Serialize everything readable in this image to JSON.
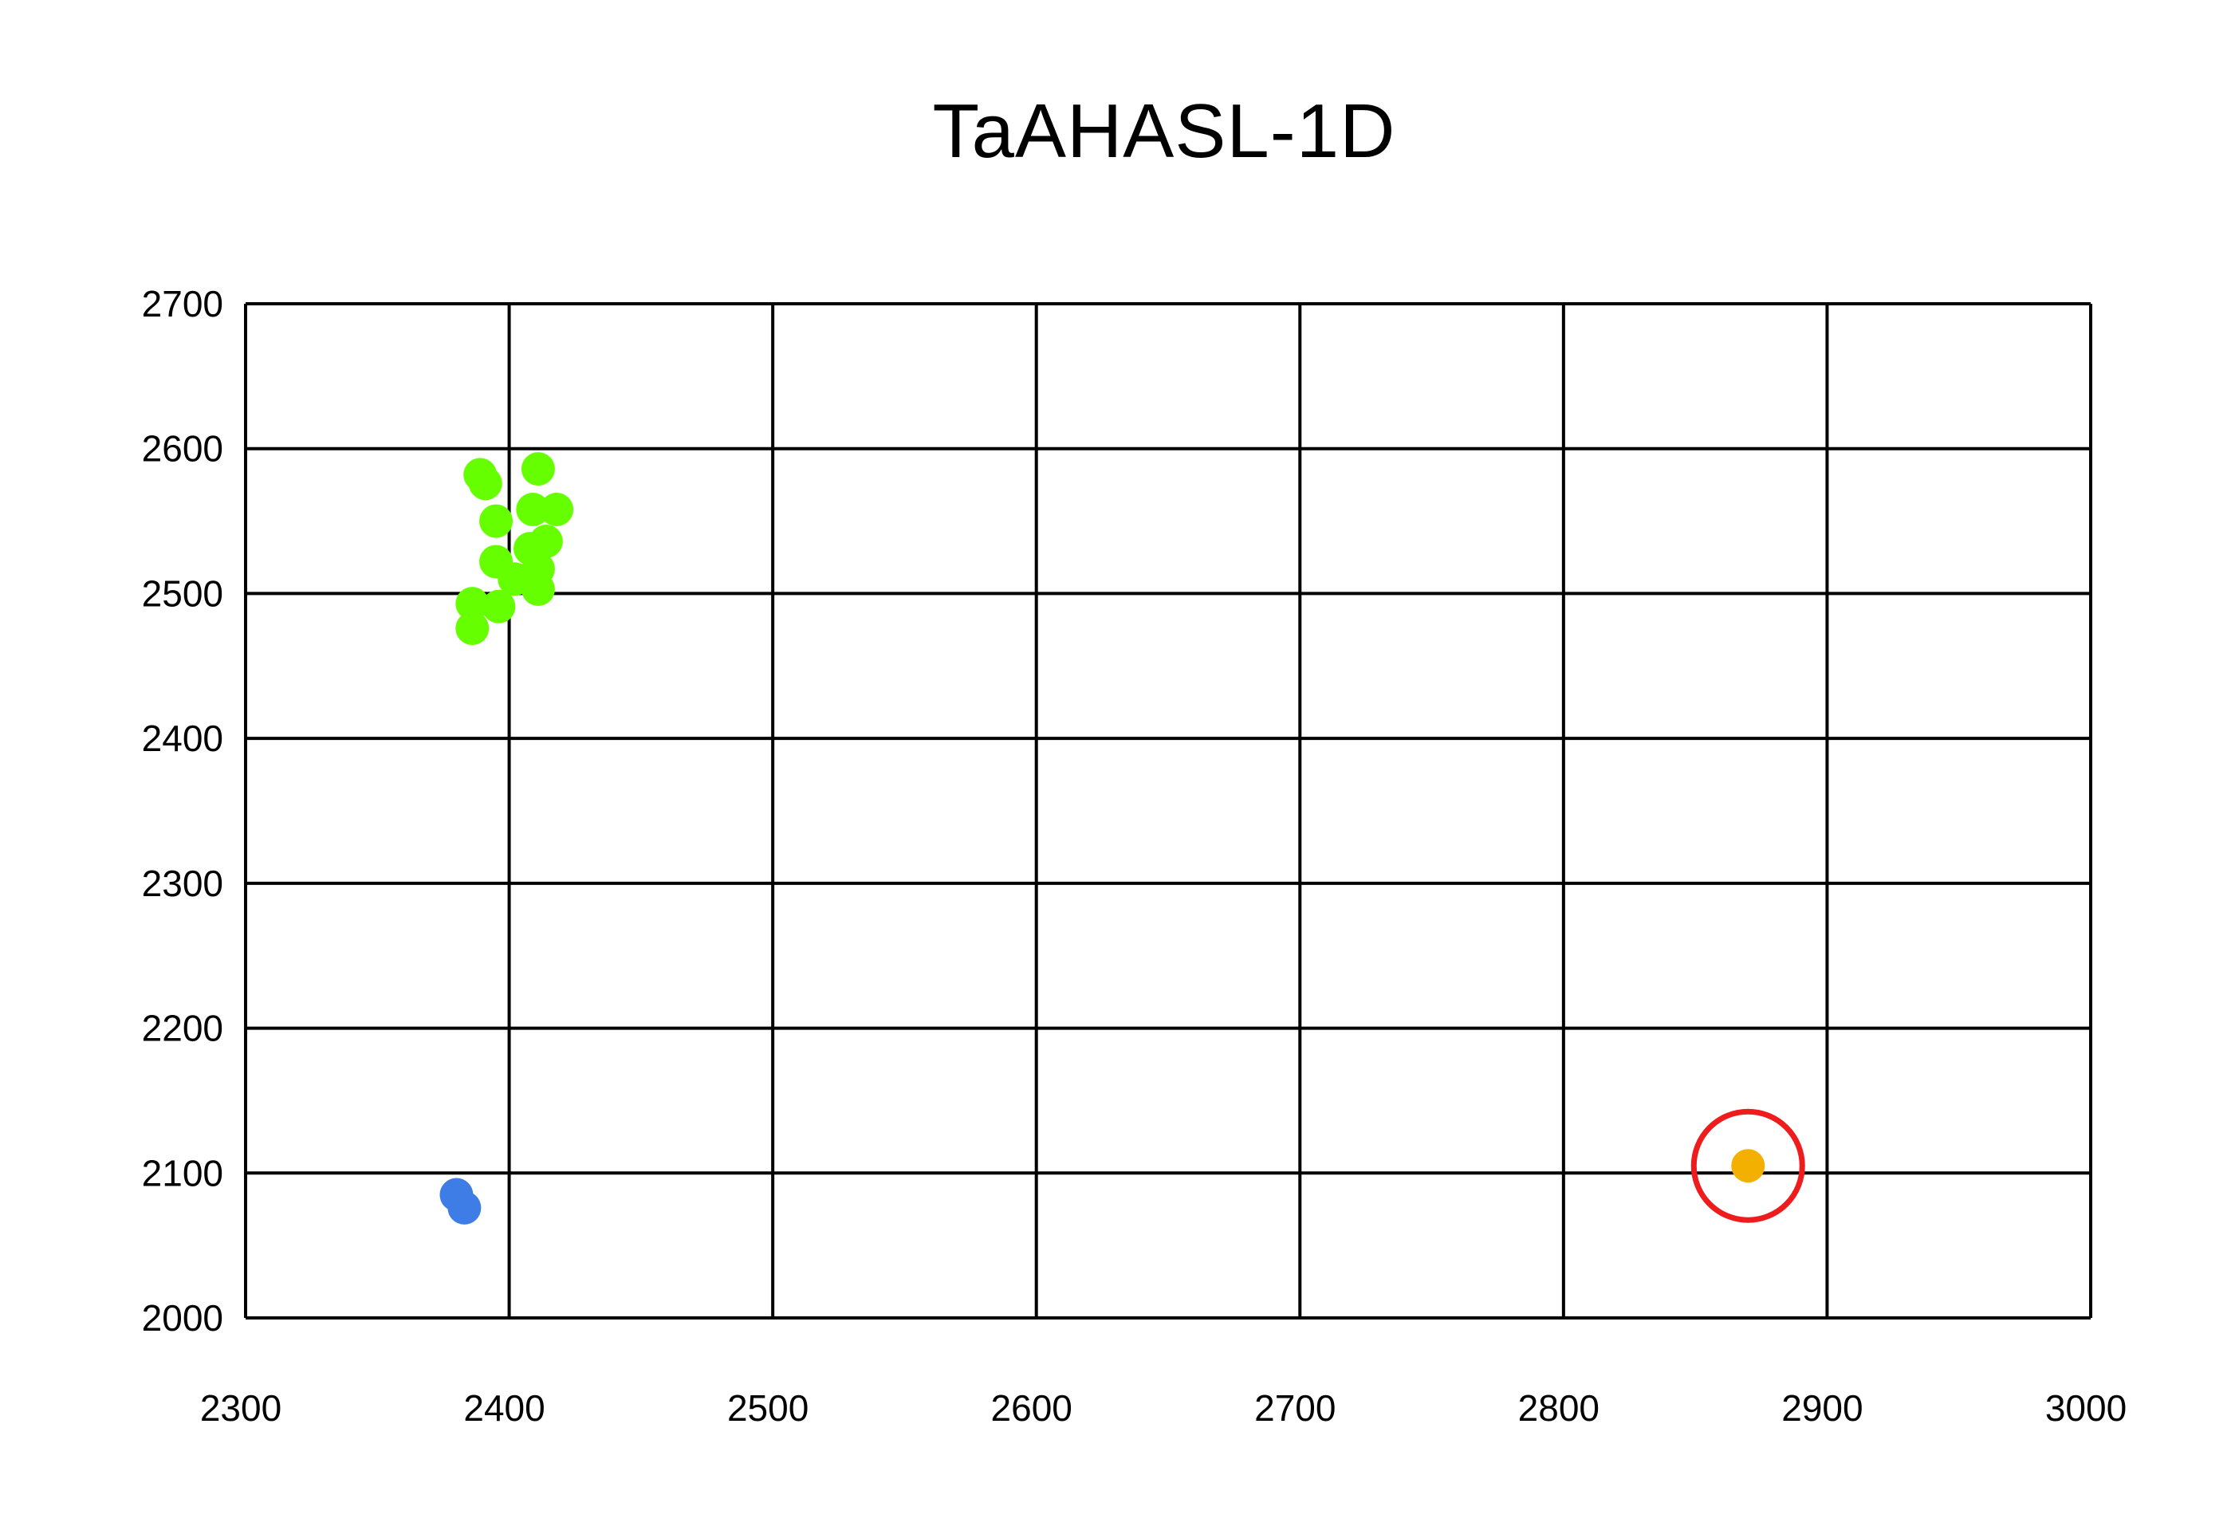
{
  "chart_data": {
    "type": "scatter",
    "title": "TaAHASL-1D",
    "xlabel": "",
    "ylabel": "",
    "xlim": [
      2300,
      3000
    ],
    "ylim": [
      2000,
      2700
    ],
    "x_ticks": [
      2300,
      2400,
      2500,
      2600,
      2700,
      2800,
      2900,
      3000
    ],
    "y_ticks": [
      2000,
      2100,
      2200,
      2300,
      2400,
      2500,
      2600,
      2700
    ],
    "grid": true,
    "series": [
      {
        "color": "#66ff00",
        "points": [
          [
            2389,
            2582
          ],
          [
            2391,
            2576
          ],
          [
            2411,
            2586
          ],
          [
            2395,
            2550
          ],
          [
            2409,
            2558
          ],
          [
            2418,
            2558
          ],
          [
            2414,
            2536
          ],
          [
            2408,
            2531
          ],
          [
            2395,
            2522
          ],
          [
            2402,
            2510
          ],
          [
            2411,
            2517
          ],
          [
            2411,
            2503
          ],
          [
            2396,
            2491
          ],
          [
            2386,
            2493
          ],
          [
            2386,
            2476
          ]
        ]
      },
      {
        "color": "#3f7de6",
        "points": [
          [
            2380,
            2085
          ],
          [
            2383,
            2076
          ]
        ]
      },
      {
        "color": "#f4b000",
        "points": [
          [
            2870,
            2105
          ]
        ]
      }
    ],
    "annotation": {
      "type": "circle",
      "color": "#ee1c1c",
      "center": [
        2870,
        2105
      ]
    }
  }
}
